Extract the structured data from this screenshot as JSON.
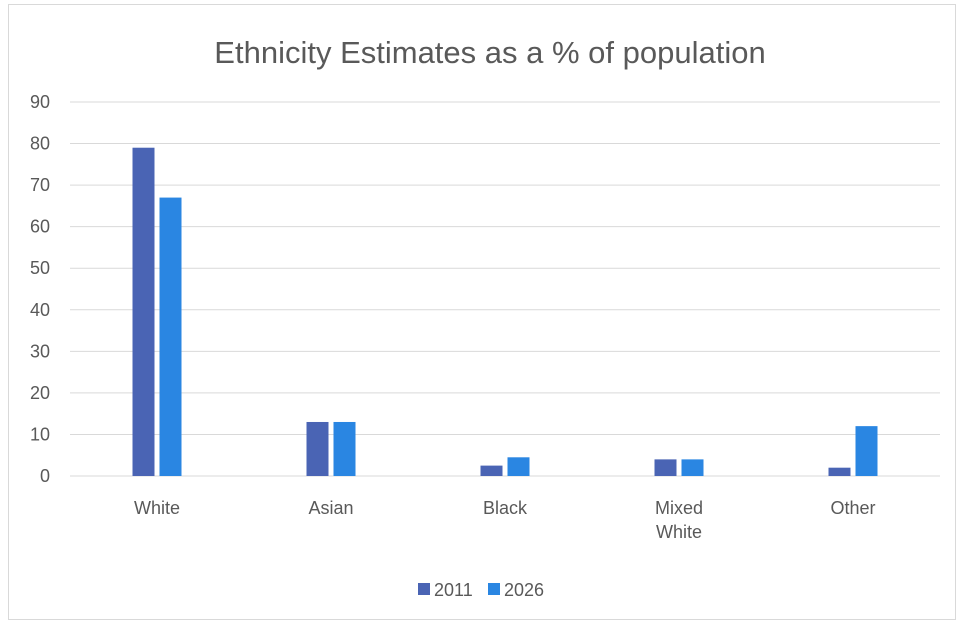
{
  "chart_data": {
    "type": "bar",
    "title": "Ethnicity Estimates as a % of population",
    "categories": [
      [
        "White"
      ],
      [
        "Asian"
      ],
      [
        "Black"
      ],
      [
        "Mixed",
        "White"
      ],
      [
        "Other"
      ]
    ],
    "series": [
      {
        "name": "2011",
        "values": [
          79,
          13,
          2.5,
          4,
          2
        ],
        "color": "#4a64b4"
      },
      {
        "name": "2026",
        "values": [
          67,
          13,
          4.5,
          4,
          12
        ],
        "color": "#2a86e2"
      }
    ],
    "ylim": [
      0,
      90
    ],
    "yticks": [
      0,
      10,
      20,
      30,
      40,
      50,
      60,
      70,
      80,
      90
    ],
    "grid": true,
    "legend": "bottom"
  }
}
